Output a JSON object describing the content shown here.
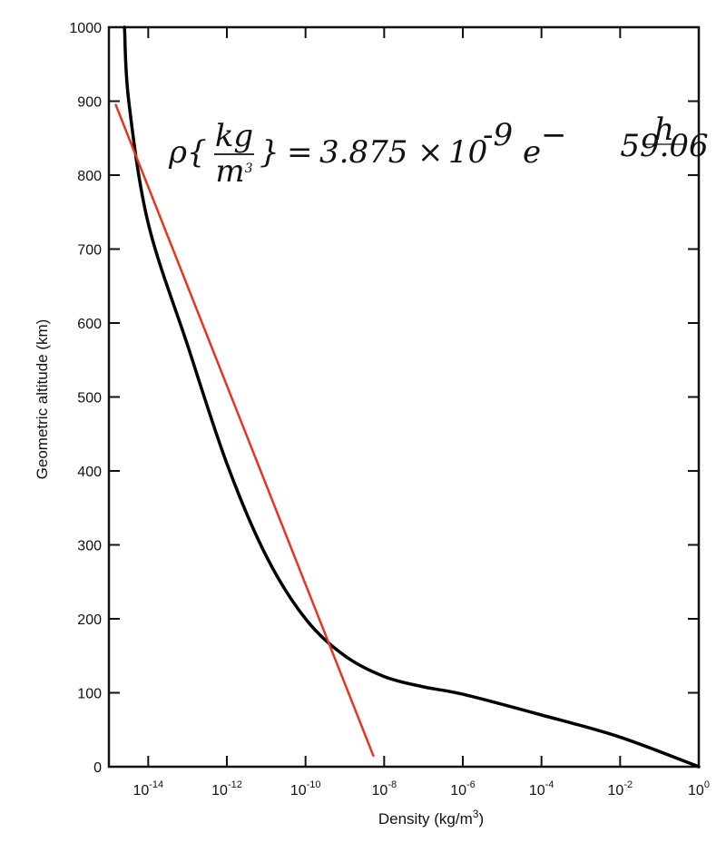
{
  "chart_data": {
    "type": "line",
    "xlabel": "Density (kg/m3)",
    "ylabel": "Geometric altitude (km)",
    "xscale": "log",
    "xlim": [
      1e-15,
      1
    ],
    "ylim": [
      0,
      1000
    ],
    "x_tick_labels": [
      {
        "base": "10",
        "exp": "-14",
        "value": 1e-14
      },
      {
        "base": "10",
        "exp": "-12",
        "value": 1e-12
      },
      {
        "base": "10",
        "exp": "-10",
        "value": 1e-10
      },
      {
        "base": "10",
        "exp": "-8",
        "value": 1e-08
      },
      {
        "base": "10",
        "exp": "-6",
        "value": 1e-06
      },
      {
        "base": "10",
        "exp": "-4",
        "value": 0.0001
      },
      {
        "base": "10",
        "exp": "-2",
        "value": 0.01
      },
      {
        "base": "10",
        "exp": "0",
        "value": 1
      }
    ],
    "y_tick_labels": [
      "0",
      "100",
      "200",
      "300",
      "400",
      "500",
      "600",
      "700",
      "800",
      "900",
      "1000"
    ],
    "grid": false,
    "series": [
      {
        "color": "#000000",
        "points": [
          {
            "x": 1,
            "y": 0
          },
          {
            "x": 0.01,
            "y": 40
          },
          {
            "x": 0.0001,
            "y": 70
          },
          {
            "x": 1e-06,
            "y": 98
          },
          {
            "x": 1e-07,
            "y": 108
          },
          {
            "x": 1e-08,
            "y": 122
          },
          {
            "x": 1e-09,
            "y": 150
          },
          {
            "x": 1e-10,
            "y": 200
          },
          {
            "x": 1e-11,
            "y": 285
          },
          {
            "x": 1e-12,
            "y": 410
          },
          {
            "x": 1e-13,
            "y": 570
          },
          {
            "x": 1e-14,
            "y": 735
          },
          {
            "x": 3.2e-15,
            "y": 900
          },
          {
            "x": 2.5e-15,
            "y": 1000
          }
        ]
      },
      {
        "color": "#e8341c",
        "formula": {
          "coef": "3.875",
          "base": "10",
          "exp": "-9",
          "numerator": "h",
          "denominator": "59.06"
        },
        "points": [
          {
            "x": 5.3e-09,
            "y": 15
          },
          {
            "x": 1.5e-15,
            "y": 895
          }
        ]
      }
    ]
  }
}
